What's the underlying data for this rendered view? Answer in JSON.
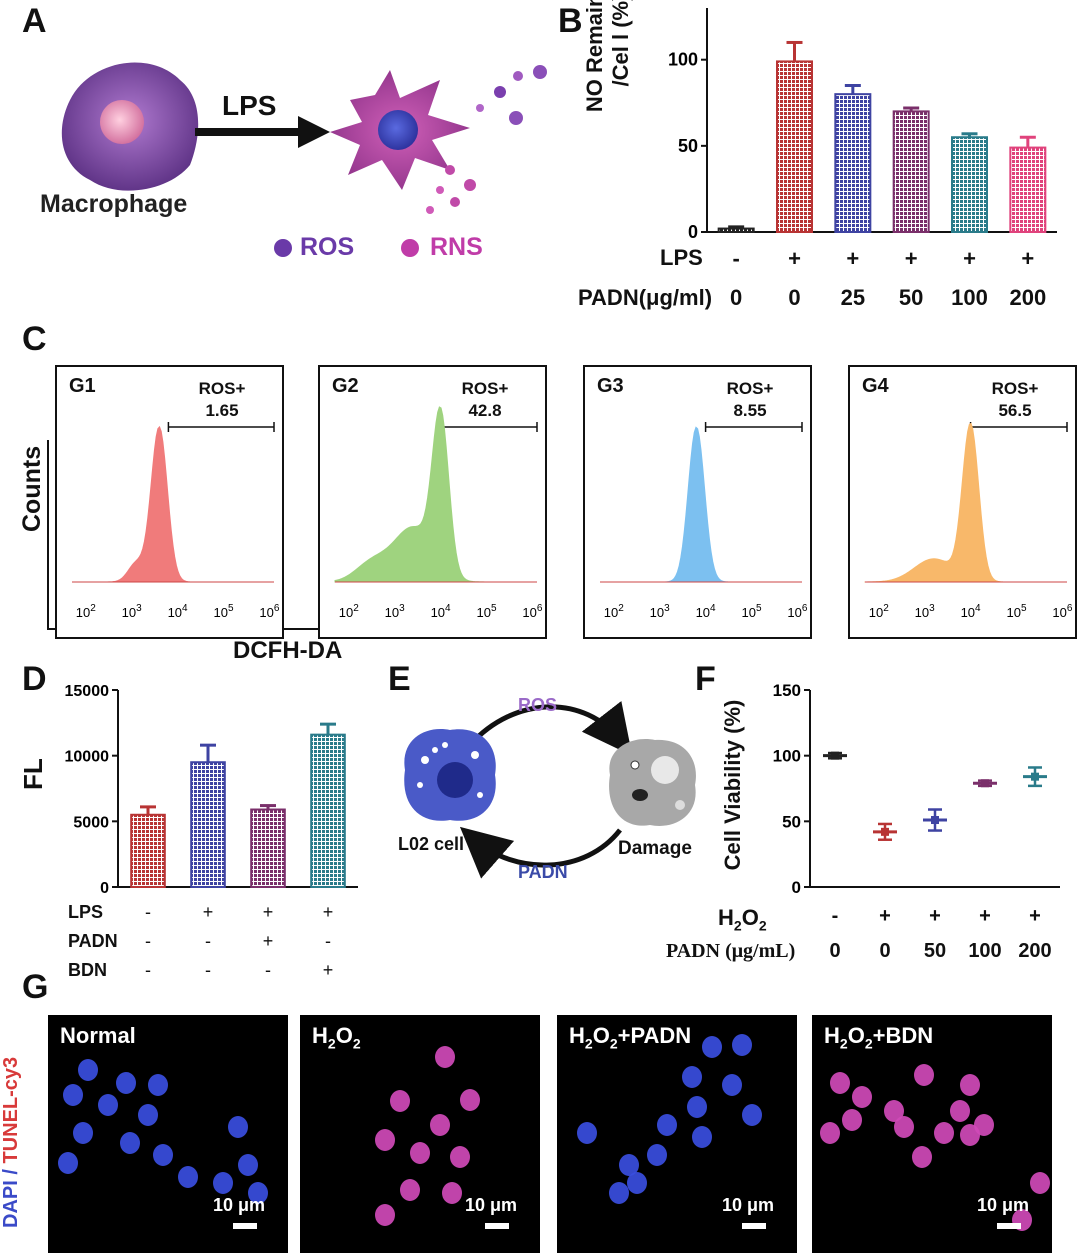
{
  "panels": {
    "A": "A",
    "B": "B",
    "C": "C",
    "D": "D",
    "E": "E",
    "F": "F",
    "G": "G"
  },
  "panel_a": {
    "cell_label": "Macrophage",
    "arrow_label": "LPS",
    "legend_ros": "ROS",
    "legend_rns": "RNS",
    "colors": {
      "macrophage": "#7a3f9c",
      "activated": "#b0399c",
      "ros": "#6a3aa8",
      "rns": "#c03ca8"
    }
  },
  "panel_b": {
    "ylabel_line1": "NO Remained",
    "ylabel_line2": "/Cel l (%)",
    "row1_label": "LPS",
    "row2_label": "PADN(μg/ml)",
    "row1": [
      "-",
      "+",
      "+",
      "+",
      "+",
      "+"
    ],
    "row2": [
      "0",
      "0",
      "25",
      "50",
      "100",
      "200"
    ]
  },
  "panel_c": {
    "ylabel": "Counts",
    "xlabel": "DCFH-DA",
    "gate_label": "ROS+",
    "groups": [
      {
        "name": "G1",
        "value": "1.65",
        "color": "#f07b7b",
        "peak": 3.6
      },
      {
        "name": "G2",
        "value": "42.8",
        "color": "#9fd37f",
        "peak": 4.0
      },
      {
        "name": "G3",
        "value": "8.55",
        "color": "#7cc0f0",
        "peak": 3.8
      },
      {
        "name": "G4",
        "value": "56.5",
        "color": "#f8b86a",
        "peak": 4.0
      }
    ],
    "xticks": [
      "10^2",
      "10^3",
      "10^4",
      "10^5",
      "10^6"
    ]
  },
  "panel_d": {
    "ylabel": "FL",
    "row_labels": [
      "LPS",
      "PADN",
      "BDN"
    ],
    "rows": [
      [
        "-",
        "+",
        "+",
        "+"
      ],
      [
        "-",
        "-",
        "+",
        "-"
      ],
      [
        "-",
        "-",
        "-",
        "+"
      ]
    ]
  },
  "panel_e": {
    "ros": "ROS",
    "padn": "PADN",
    "cell": "L02 cell",
    "damage": "Damage"
  },
  "panel_f": {
    "ylabel": "Cell Viability (%)",
    "row1_label": "H2O2",
    "row2_label": "PADN (μg/mL)",
    "row1": [
      "-",
      "+",
      "+",
      "+",
      "+"
    ],
    "row2": [
      "0",
      "0",
      "50",
      "100",
      "200"
    ]
  },
  "panel_g": {
    "side_label_dapi": "DAPI",
    "side_label_sep": " / ",
    "side_label_tunel": "TUNEL-cy3",
    "images": [
      {
        "label": "Normal",
        "scale": "10 μm"
      },
      {
        "label": "H2O2",
        "scale": "10 μm"
      },
      {
        "label": "H2O2+PADN",
        "scale": "10 μm"
      },
      {
        "label": "H2O2+BDN",
        "scale": "10 μm"
      }
    ]
  },
  "chart_data": [
    {
      "type": "bar",
      "panel": "B",
      "ylabel": "NO Remained /Cel l (%)",
      "ylim": [
        0,
        130
      ],
      "yticks": [
        0,
        50,
        100
      ],
      "categories": [
        "1",
        "2",
        "3",
        "4",
        "5",
        "6"
      ],
      "values": [
        2,
        99,
        80,
        70,
        55,
        49
      ],
      "errors": [
        1,
        11,
        5,
        2,
        2,
        6
      ],
      "colors": [
        "#222222",
        "#b83434",
        "#3e43a2",
        "#7a2f6a",
        "#2a7b8a",
        "#e0437c"
      ]
    },
    {
      "type": "bar",
      "panel": "D",
      "ylabel": "FL",
      "ylim": [
        0,
        15000
      ],
      "yticks": [
        0,
        5000,
        10000,
        15000
      ],
      "categories": [
        "1",
        "2",
        "3",
        "4"
      ],
      "values": [
        5500,
        9500,
        5900,
        11600
      ],
      "errors": [
        600,
        1300,
        300,
        800
      ],
      "colors": [
        "#b83434",
        "#3e43a2",
        "#7a2f6a",
        "#2a7b8a"
      ]
    },
    {
      "type": "scatter",
      "panel": "F",
      "ylabel": "Cell Viability (%)",
      "ylim": [
        0,
        150
      ],
      "yticks": [
        0,
        50,
        100,
        150
      ],
      "categories": [
        "1",
        "2",
        "3",
        "4",
        "5"
      ],
      "values": [
        100,
        42,
        51,
        79,
        84
      ],
      "errors": [
        2,
        6,
        8,
        2,
        7
      ],
      "colors": [
        "#222222",
        "#b83434",
        "#3e43a2",
        "#7a2f6a",
        "#2a7b8a"
      ]
    }
  ]
}
